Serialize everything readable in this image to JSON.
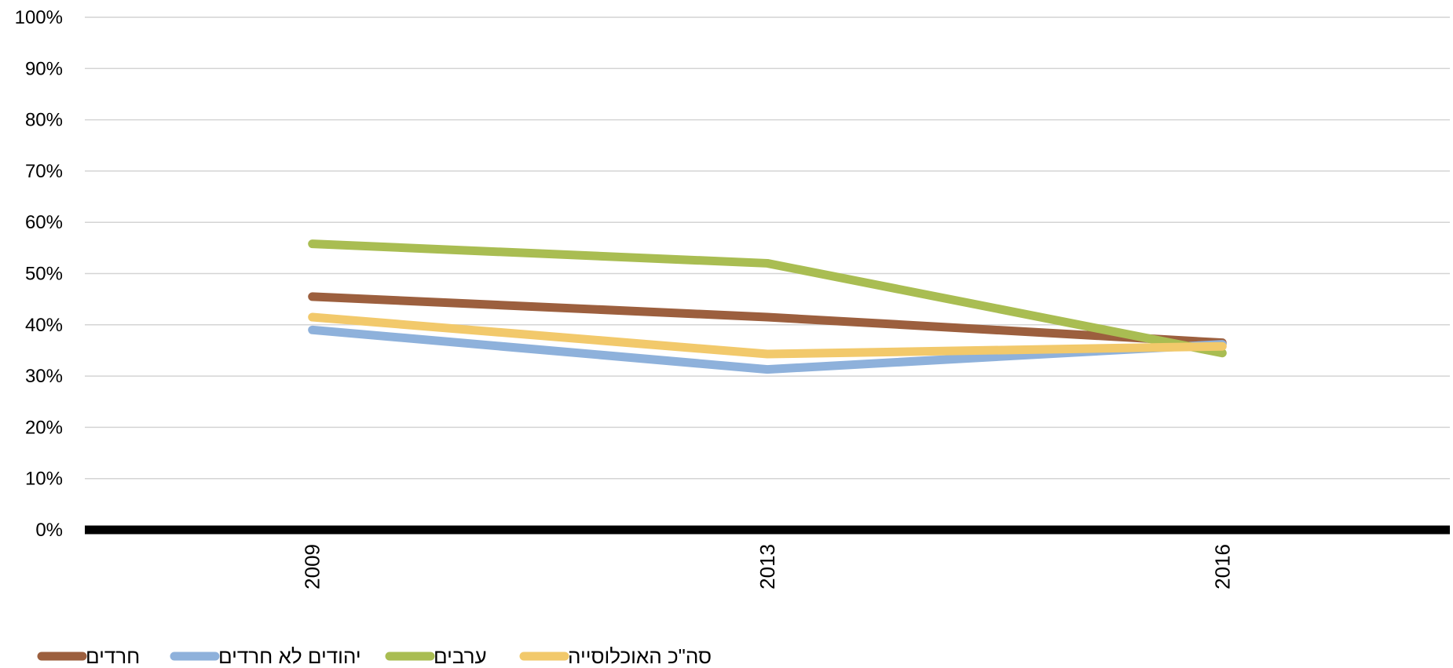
{
  "chart_data": {
    "type": "line",
    "title": "",
    "xlabel": "",
    "ylabel": "",
    "categories": [
      "2009",
      "2013",
      "2016"
    ],
    "ylim": [
      0,
      100
    ],
    "yticks": [
      "0%",
      "10%",
      "20%",
      "30%",
      "40%",
      "50%",
      "60%",
      "70%",
      "80%",
      "90%",
      "100%"
    ],
    "grid": true,
    "legend_position": "bottom-left",
    "series": [
      {
        "name": "חרדים",
        "color": "#9c5f3e",
        "values": [
          45.5,
          41.5,
          36.5
        ]
      },
      {
        "name": "יהודים לא חרדים",
        "color": "#8eb1db",
        "values": [
          39,
          31.3,
          36.2
        ]
      },
      {
        "name": "ערבים",
        "color": "#a9bd52",
        "values": [
          55.8,
          52,
          34.5
        ]
      },
      {
        "name": "סה\"כ האוכלוסייה",
        "color": "#f2c96b",
        "values": [
          41.5,
          34.3,
          35.8
        ]
      }
    ]
  }
}
